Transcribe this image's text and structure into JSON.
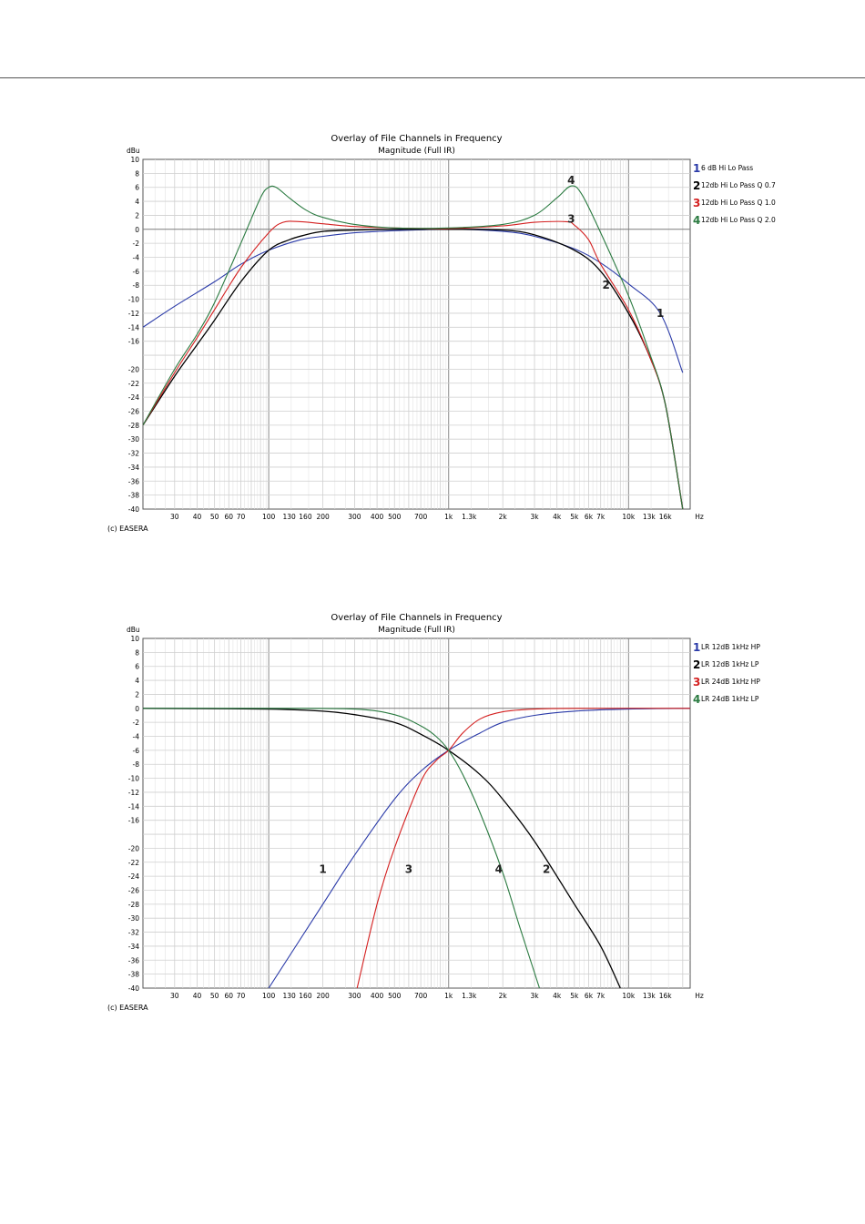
{
  "charts": [
    {
      "copyright": "(c) EASERA",
      "chart_data": {
        "type": "line",
        "title": "Overlay of File Channels in Frequency",
        "subtitle": "Magnitude (Full IR)",
        "ylabel": "dBu",
        "xunit": "Hz",
        "xscale": "log",
        "xlim": [
          20,
          22000
        ],
        "ylim": [
          -40,
          10
        ],
        "grid": true,
        "legend_position": "right",
        "yticks": [
          10,
          8,
          6,
          4,
          2,
          0,
          -2,
          -4,
          -6,
          -8,
          -10,
          -12,
          -14,
          -16,
          -20,
          -22,
          -24,
          -26,
          -28,
          -30,
          -32,
          -34,
          -36,
          -38,
          -40
        ],
        "xtick_labels": [
          "30",
          "40",
          "50",
          "60",
          "70",
          "100",
          "130",
          "160",
          "200",
          "300",
          "400",
          "500",
          "700",
          "1k",
          "1.3k",
          "2k",
          "3k",
          "4k",
          "5k",
          "6k",
          "7k",
          "10k",
          "13k",
          "16k",
          "Hz"
        ],
        "series": [
          {
            "name": "6 dB Hi Lo Pass",
            "number": "1",
            "color": "#2a3aa8",
            "x": [
              20,
              30,
              50,
              70,
              100,
              150,
              200,
              300,
              500,
              1000,
              2000,
              3000,
              5000,
              7000,
              10000,
              15000,
              20000
            ],
            "y": [
              -14,
              -11,
              -7.5,
              -5,
              -3,
              -1.5,
              -1,
              -0.5,
              -0.2,
              0,
              -0.3,
              -1,
              -2.8,
              -4.8,
              -7.8,
              -12,
              -20.5
            ],
            "label_at": [
              15000,
              -12
            ]
          },
          {
            "name": "12db Hi Lo Pass Q 0.7",
            "number": "2",
            "color": "#000000",
            "x": [
              20,
              30,
              40,
              50,
              70,
              100,
              130,
              160,
              200,
              300,
              500,
              1000,
              2000,
              3000,
              5000,
              7000,
              10000,
              13000,
              16000,
              20000
            ],
            "y": [
              -28,
              -21,
              -16.5,
              -13,
              -7.5,
              -3,
              -1.5,
              -0.8,
              -0.3,
              -0.1,
              0,
              0,
              -0.1,
              -0.8,
              -3,
              -6,
              -12,
              -18,
              -25,
              -40
            ],
            "label_at": [
              7500,
              -8
            ]
          },
          {
            "name": "12db Hi Lo Pass Q 1.0",
            "number": "3",
            "color": "#d42020",
            "x": [
              20,
              30,
              40,
              50,
              70,
              100,
              120,
              150,
              200,
              300,
              500,
              1000,
              2000,
              3000,
              4500,
              5000,
              6000,
              7000,
              10000,
              13000,
              16000,
              20000
            ],
            "y": [
              -28,
              -20.5,
              -15.5,
              -11.5,
              -5.5,
              -0.5,
              1,
              1.1,
              0.8,
              0.4,
              0.2,
              0.1,
              0.5,
              1,
              1.1,
              0.6,
              -1.5,
              -5,
              -11.5,
              -18,
              -25,
              -40
            ],
            "label_at": [
              4800,
              1.5
            ]
          },
          {
            "name": "12db Hi Lo Pass Q 2.0",
            "number": "4",
            "color": "#2a7a40",
            "x": [
              20,
              30,
              40,
              50,
              70,
              90,
              100,
              110,
              130,
              160,
              200,
              300,
              500,
              1000,
              2000,
              3000,
              4000,
              4800,
              5500,
              7000,
              10000,
              13000,
              16000,
              20000
            ],
            "y": [
              -28,
              -20,
              -15,
              -10.5,
              -2,
              4.5,
              6,
              6,
              4.5,
              2.8,
              1.7,
              0.7,
              0.2,
              0.2,
              0.7,
              2,
              4.5,
              6.2,
              5,
              -0.5,
              -9.5,
              -17.5,
              -25,
              -40
            ],
            "label_at": [
              4800,
              7
            ]
          }
        ]
      }
    },
    {
      "copyright": "(c) EASERA",
      "chart_data": {
        "type": "line",
        "title": "Overlay of File Channels in Frequency",
        "subtitle": "Magnitude (Full IR)",
        "ylabel": "dBu",
        "xunit": "Hz",
        "xscale": "log",
        "xlim": [
          20,
          22000
        ],
        "ylim": [
          -40,
          10
        ],
        "grid": true,
        "legend_position": "right",
        "yticks": [
          10,
          8,
          6,
          4,
          2,
          0,
          -2,
          -4,
          -6,
          -8,
          -10,
          -12,
          -14,
          -16,
          -20,
          -22,
          -24,
          -26,
          -28,
          -30,
          -32,
          -34,
          -36,
          -38,
          -40
        ],
        "xtick_labels": [
          "30",
          "40",
          "50",
          "60",
          "70",
          "100",
          "130",
          "160",
          "200",
          "300",
          "400",
          "500",
          "700",
          "1k",
          "1.3k",
          "2k",
          "3k",
          "4k",
          "5k",
          "6k",
          "7k",
          "10k",
          "13k",
          "16k",
          "Hz"
        ],
        "series": [
          {
            "name": "LR 12dB 1kHz HP",
            "number": "1",
            "color": "#2a3aa8",
            "x": [
              100,
              200,
              300,
              500,
              700,
              1000,
              1500,
              2000,
              3000,
              5000,
              10000,
              22000
            ],
            "y": [
              -40,
              -28,
              -21,
              -13,
              -9,
              -6,
              -3.5,
              -2,
              -1,
              -0.4,
              -0.1,
              0
            ],
            "label_at": [
              200,
              -23
            ]
          },
          {
            "name": "LR 12dB 1kHz LP",
            "number": "2",
            "color": "#000000",
            "x": [
              20,
              100,
              200,
              300,
              500,
              700,
              1000,
              1500,
              2000,
              3000,
              5000,
              7000,
              9000
            ],
            "y": [
              0,
              -0.1,
              -0.4,
              -0.9,
              -2,
              -3.7,
              -6,
              -9.5,
              -13,
              -19,
              -28,
              -34,
              -40
            ],
            "label_at": [
              3500,
              -23
            ]
          },
          {
            "name": "LR 24dB 1kHz HP",
            "number": "3",
            "color": "#d42020",
            "x": [
              310,
              400,
              500,
              700,
              850,
              1000,
              1200,
              1500,
              2000,
              3000,
              5000,
              22000
            ],
            "y": [
              -40,
              -28,
              -20,
              -10.5,
              -7.5,
              -6,
              -3.5,
              -1.5,
              -0.5,
              -0.1,
              0,
              0
            ],
            "label_at": [
              600,
              -23
            ]
          },
          {
            "name": "LR 24dB 1kHz LP",
            "number": "4",
            "color": "#2a7a40",
            "x": [
              20,
              100,
              300,
              500,
              700,
              850,
              1000,
              1200,
              1500,
              2000,
              2500,
              3200
            ],
            "y": [
              0,
              0,
              -0.1,
              -0.9,
              -2.5,
              -4,
              -6,
              -9.5,
              -15,
              -23.5,
              -31.5,
              -40
            ],
            "label_at": [
              1900,
              -23
            ]
          }
        ]
      }
    }
  ]
}
